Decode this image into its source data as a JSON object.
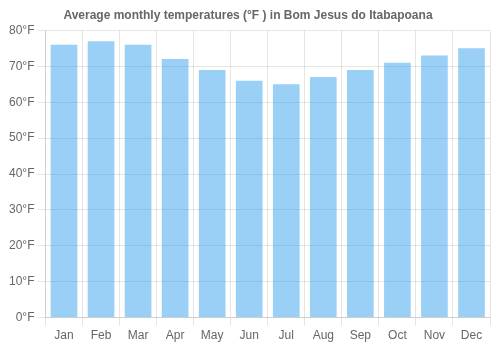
{
  "chart_data": {
    "type": "bar",
    "title": "Average monthly temperatures (°F ) in Bom Jesus do Itabapoana",
    "categories": [
      "Jan",
      "Feb",
      "Mar",
      "Apr",
      "May",
      "Jun",
      "Jul",
      "Aug",
      "Sep",
      "Oct",
      "Nov",
      "Dec"
    ],
    "values": [
      76,
      77,
      76,
      72,
      69,
      66,
      65,
      67,
      69,
      71,
      73,
      75
    ],
    "ylim": [
      0,
      80
    ],
    "yticks": [
      {
        "value": 0,
        "label": "0°F"
      },
      {
        "value": 10,
        "label": "10°F"
      },
      {
        "value": 20,
        "label": "20°F"
      },
      {
        "value": 30,
        "label": "30°F"
      },
      {
        "value": 40,
        "label": "40°F"
      },
      {
        "value": 50,
        "label": "50°F"
      },
      {
        "value": 60,
        "label": "60°F"
      },
      {
        "value": 70,
        "label": "70°F"
      },
      {
        "value": 80,
        "label": "80°F"
      }
    ],
    "grid": true
  }
}
